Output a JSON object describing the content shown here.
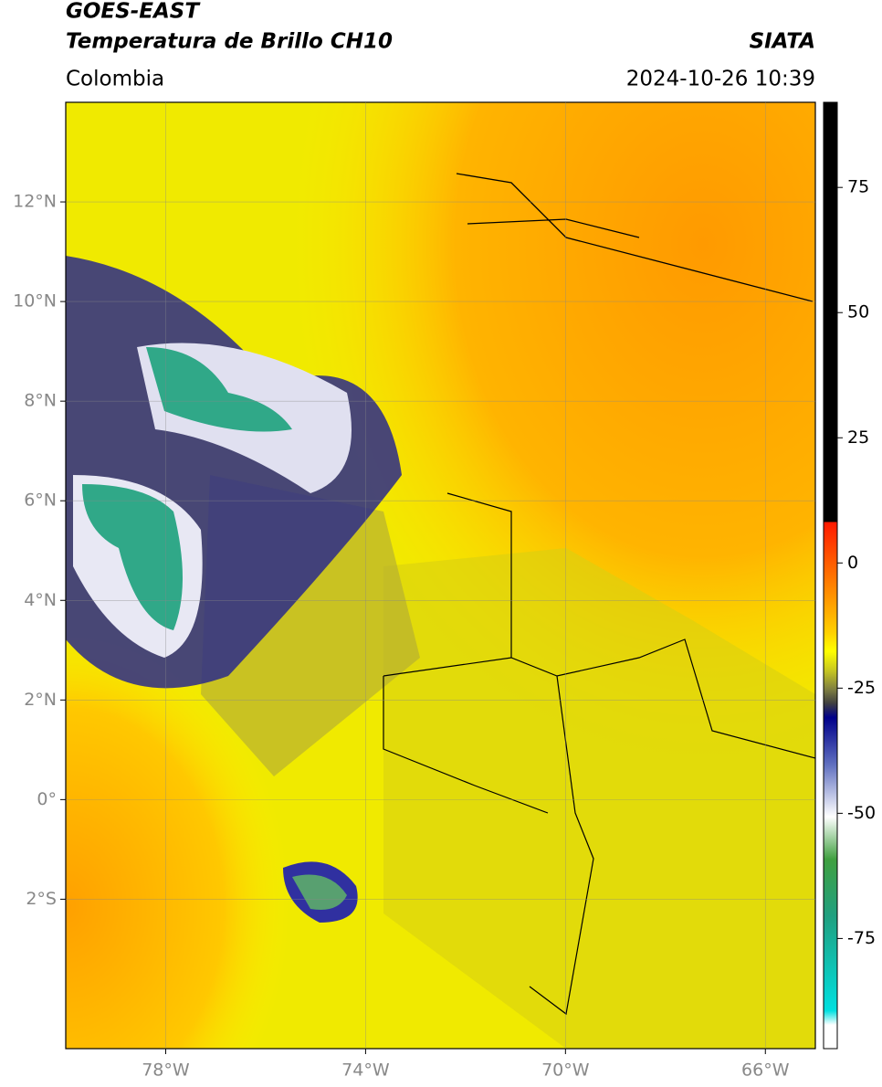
{
  "header": {
    "title": "GOES-EAST",
    "subtitle": "Temperatura de Brillo CH10",
    "source": "SIATA",
    "region": "Colombia",
    "datetime": "2024-10-26 10:39"
  },
  "map": {
    "lonlim": [
      -80,
      -65
    ],
    "latlim": [
      -5,
      14
    ],
    "lon_ticks": [
      {
        "value": -78,
        "label": "78°W"
      },
      {
        "value": -74,
        "label": "74°W"
      },
      {
        "value": -70,
        "label": "70°W"
      },
      {
        "value": -66,
        "label": "66°W"
      }
    ],
    "lat_ticks": [
      {
        "value": 12,
        "label": "12°N"
      },
      {
        "value": 10,
        "label": "10°N"
      },
      {
        "value": 8,
        "label": "8°N"
      },
      {
        "value": 6,
        "label": "6°N"
      },
      {
        "value": 4,
        "label": "4°N"
      },
      {
        "value": 2,
        "label": "2°N"
      },
      {
        "value": 0,
        "label": "0°"
      },
      {
        "value": -2,
        "label": "2°S"
      }
    ],
    "grid": true
  },
  "colorbar": {
    "lim": [
      -97,
      92
    ],
    "ticks": [
      75,
      50,
      25,
      0,
      -25,
      -50,
      -75
    ]
  }
}
